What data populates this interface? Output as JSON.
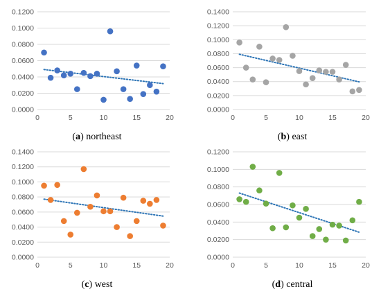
{
  "chart_data": [
    {
      "type": "scatter",
      "caption_letter": "a",
      "caption_text": " northeast",
      "color": "#4472C4",
      "xlim": [
        0,
        20
      ],
      "xticks": [
        0,
        5,
        10,
        15,
        20
      ],
      "xtick_labels": [
        "0",
        "5",
        "10",
        "15",
        "20"
      ],
      "ylim": [
        0,
        0.12
      ],
      "yticks": [
        0,
        0.02,
        0.04,
        0.06,
        0.08,
        0.1,
        0.12
      ],
      "ytick_labels": [
        "0.0000",
        "0.0200",
        "0.0400",
        "0.0600",
        "0.0800",
        "0.1000",
        "0.1200"
      ],
      "grid": true,
      "trendline": "linear, dotted",
      "x": [
        1,
        2,
        3,
        4,
        5,
        6,
        7,
        8,
        9,
        10,
        11,
        12,
        13,
        14,
        15,
        16,
        17,
        18,
        19
      ],
      "y": [
        0.07,
        0.039,
        0.048,
        0.042,
        0.044,
        0.025,
        0.045,
        0.041,
        0.044,
        0.012,
        0.096,
        0.047,
        0.025,
        0.013,
        0.054,
        0.019,
        0.03,
        0.022,
        0.053
      ]
    },
    {
      "type": "scatter",
      "caption_letter": "b",
      "caption_text": " east",
      "color": "#A5A5A5",
      "xlim": [
        0,
        20
      ],
      "xticks": [
        0,
        5,
        10,
        15,
        20
      ],
      "xtick_labels": [
        "0",
        "5",
        "10",
        "15",
        "20"
      ],
      "ylim": [
        0,
        0.14
      ],
      "yticks": [
        0,
        0.02,
        0.04,
        0.06,
        0.08,
        0.1,
        0.12,
        0.14
      ],
      "ytick_labels": [
        "0.0000",
        "0.0200",
        "0.0400",
        "0.0600",
        "0.0800",
        "0.1000",
        "0.1200",
        "0.1400"
      ],
      "grid": true,
      "trendline": "linear, dotted",
      "x": [
        1,
        2,
        3,
        4,
        5,
        6,
        7,
        8,
        9,
        10,
        11,
        12,
        13,
        14,
        15,
        16,
        17,
        18,
        19
      ],
      "y": [
        0.096,
        0.06,
        0.043,
        0.09,
        0.039,
        0.073,
        0.071,
        0.118,
        0.077,
        0.055,
        0.036,
        0.045,
        0.056,
        0.054,
        0.054,
        0.043,
        0.064,
        0.026,
        0.028
      ]
    },
    {
      "type": "scatter",
      "caption_letter": "c",
      "caption_text": " west",
      "color": "#ED7D31",
      "xlim": [
        0,
        20
      ],
      "xticks": [
        0,
        5,
        10,
        15,
        20
      ],
      "xtick_labels": [
        "0",
        "5",
        "10",
        "15",
        "20"
      ],
      "ylim": [
        0,
        0.14
      ],
      "yticks": [
        0,
        0.02,
        0.04,
        0.06,
        0.08,
        0.1,
        0.12,
        0.14
      ],
      "ytick_labels": [
        "0.0000",
        "0.0200",
        "0.0400",
        "0.0600",
        "0.0800",
        "0.1000",
        "0.1200",
        "0.1400"
      ],
      "grid": true,
      "trendline": "linear, dotted",
      "x": [
        1,
        2,
        3,
        4,
        5,
        6,
        7,
        8,
        9,
        10,
        11,
        12,
        13,
        14,
        15,
        16,
        17,
        18,
        19
      ],
      "y": [
        0.095,
        0.076,
        0.096,
        0.048,
        0.03,
        0.059,
        0.117,
        0.067,
        0.082,
        0.061,
        0.061,
        0.04,
        0.079,
        0.028,
        0.048,
        0.075,
        0.071,
        0.076,
        0.042
      ]
    },
    {
      "type": "scatter",
      "caption_letter": "d",
      "caption_text": " central",
      "color": "#70AD47",
      "xlim": [
        0,
        20
      ],
      "xticks": [
        0,
        5,
        10,
        15,
        20
      ],
      "xtick_labels": [
        "0",
        "5",
        "10",
        "15",
        "20"
      ],
      "ylim": [
        0,
        0.12
      ],
      "yticks": [
        0,
        0.02,
        0.04,
        0.06,
        0.08,
        0.1,
        0.12
      ],
      "ytick_labels": [
        "0.0000",
        "0.0200",
        "0.0400",
        "0.0600",
        "0.0800",
        "0.1000",
        "0.1200"
      ],
      "grid": true,
      "trendline": "linear, dotted",
      "x": [
        1,
        2,
        3,
        4,
        5,
        6,
        7,
        8,
        9,
        10,
        11,
        12,
        13,
        14,
        15,
        16,
        17,
        18,
        19
      ],
      "y": [
        0.066,
        0.063,
        0.103,
        0.076,
        0.061,
        0.033,
        0.096,
        0.034,
        0.059,
        0.045,
        0.055,
        0.024,
        0.032,
        0.02,
        0.037,
        0.036,
        0.019,
        0.042,
        0.063
      ]
    }
  ]
}
